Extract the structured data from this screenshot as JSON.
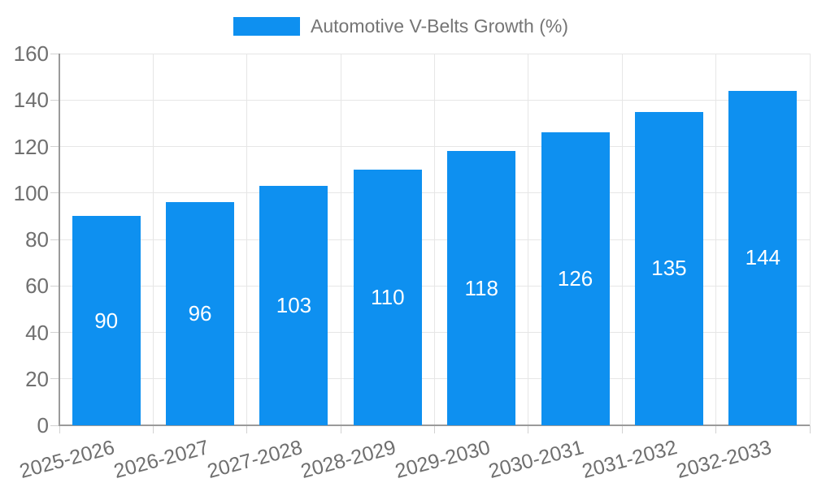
{
  "chart_data": {
    "type": "bar",
    "legend": "Automotive V-Belts Growth (%)",
    "legend_position": "top",
    "categories": [
      "2025-2026",
      "2026-2027",
      "2027-2028",
      "2028-2029",
      "2029-2030",
      "2030-2031",
      "2031-2032",
      "2032-2033"
    ],
    "values": [
      90,
      96,
      103,
      110,
      118,
      126,
      135,
      144
    ],
    "xlabel": "",
    "ylabel": "",
    "ylim": [
      0,
      160
    ],
    "ytick_step": 20,
    "grid": true,
    "value_labels_shown": true,
    "x_label_rotation_deg": -15,
    "colors": {
      "bar": "#0e90f0",
      "value_label": "#ffffff",
      "tick_text": "#6f6f6f",
      "legend_text": "#757575",
      "gridline": "#e6e6e6",
      "tick_mark": "#d2d2d2",
      "axis": "#9a9a9a",
      "background": "#ffffff"
    }
  }
}
